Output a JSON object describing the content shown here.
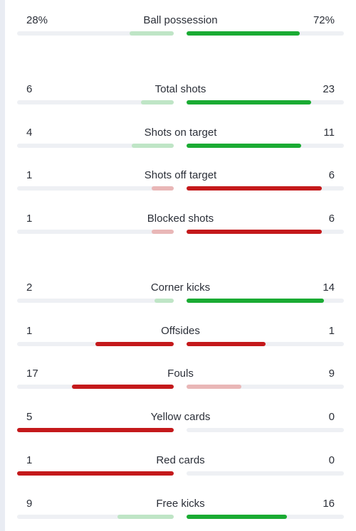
{
  "colors": {
    "green_strong": "#1aab33",
    "green_light": "#bfe5c6",
    "red_strong": "#c4191b",
    "red_light": "#e9b7b7",
    "track": "#eef0f4",
    "text": "#2b2f38"
  },
  "stats": [
    {
      "label": "Ball possession",
      "home": "28%",
      "away": "72%",
      "home_level": 0.28,
      "away_level": 0.72,
      "home_color": "green_light",
      "away_color": "green_strong"
    },
    {
      "label": "Total shots",
      "home": "6",
      "away": "23",
      "home_level": 0.21,
      "away_level": 0.79,
      "home_color": "green_light",
      "away_color": "green_strong"
    },
    {
      "label": "Shots on target",
      "home": "4",
      "away": "11",
      "home_level": 0.27,
      "away_level": 0.73,
      "home_color": "green_light",
      "away_color": "green_strong"
    },
    {
      "label": "Shots off target",
      "home": "1",
      "away": "6",
      "home_level": 0.14,
      "away_level": 0.86,
      "home_color": "red_light",
      "away_color": "red_strong"
    },
    {
      "label": "Blocked shots",
      "home": "1",
      "away": "6",
      "home_level": 0.14,
      "away_level": 0.86,
      "home_color": "red_light",
      "away_color": "red_strong"
    },
    {
      "label": "Corner kicks",
      "home": "2",
      "away": "14",
      "home_level": 0.125,
      "away_level": 0.875,
      "home_color": "green_light",
      "away_color": "green_strong"
    },
    {
      "label": "Offsides",
      "home": "1",
      "away": "1",
      "home_level": 0.5,
      "away_level": 0.5,
      "home_color": "red_strong",
      "away_color": "red_strong"
    },
    {
      "label": "Fouls",
      "home": "17",
      "away": "9",
      "home_level": 0.65,
      "away_level": 0.35,
      "home_color": "red_strong",
      "away_color": "red_light"
    },
    {
      "label": "Yellow cards",
      "home": "5",
      "away": "0",
      "home_level": 1.0,
      "away_level": 0.0,
      "home_color": "red_strong",
      "away_color": "red_strong"
    },
    {
      "label": "Red cards",
      "home": "1",
      "away": "0",
      "home_level": 1.0,
      "away_level": 0.0,
      "home_color": "red_strong",
      "away_color": "red_strong"
    },
    {
      "label": "Free kicks",
      "home": "9",
      "away": "16",
      "home_level": 0.36,
      "away_level": 0.64,
      "home_color": "green_light",
      "away_color": "green_strong"
    }
  ]
}
